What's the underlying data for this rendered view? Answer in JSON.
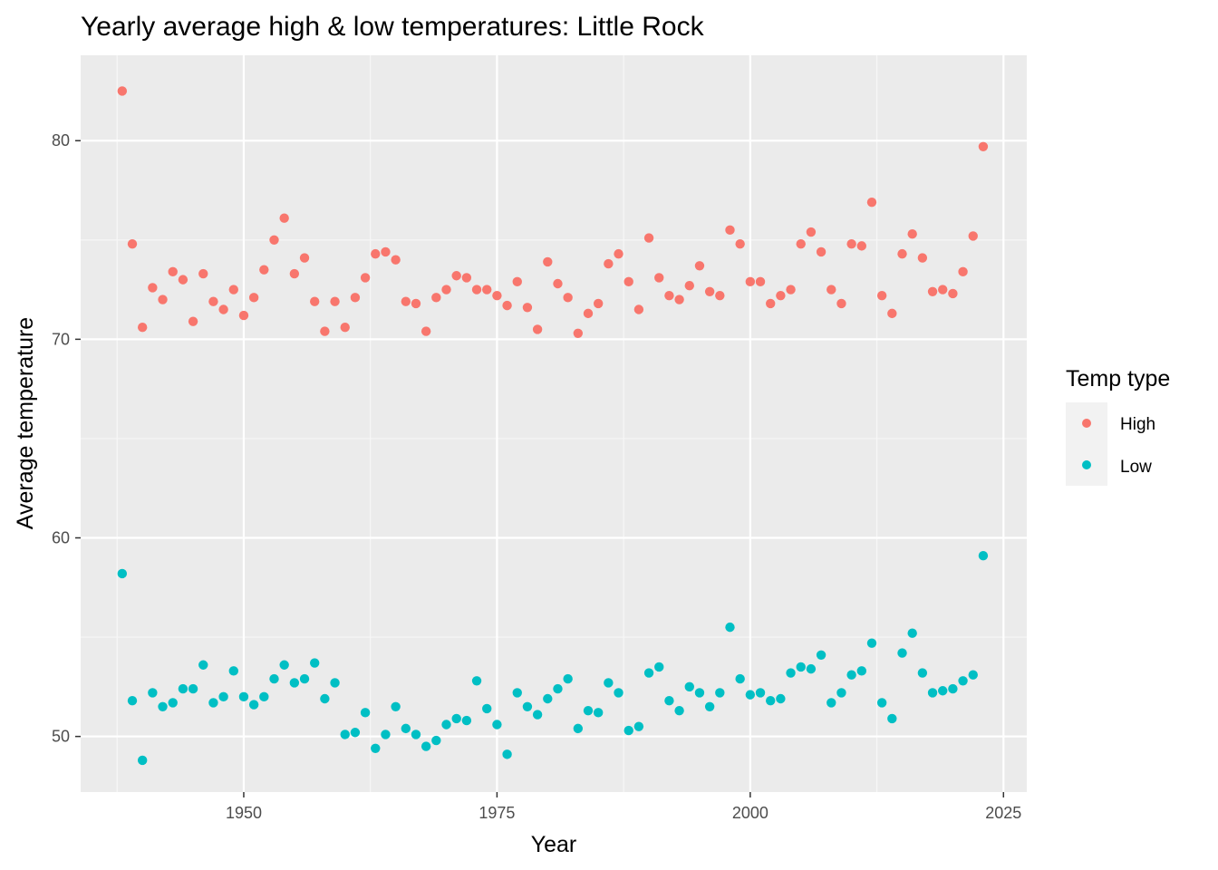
{
  "chart_data": {
    "type": "scatter",
    "title": "Yearly average high & low temperatures: Little Rock",
    "xlabel": "Year",
    "ylabel": "Average temperature",
    "xlim": [
      1933.9,
      2027.3
    ],
    "ylim": [
      47.2,
      84.3
    ],
    "x_ticks": [
      1950,
      1975,
      2000,
      2025
    ],
    "y_ticks": [
      50,
      60,
      70,
      80
    ],
    "grid": true,
    "legend": {
      "title": "Temp type",
      "position": "right"
    },
    "series": [
      {
        "name": "High",
        "color": "#F8766D",
        "x": [
          1938,
          1939,
          1940,
          1941,
          1942,
          1943,
          1944,
          1945,
          1946,
          1947,
          1948,
          1949,
          1950,
          1951,
          1952,
          1953,
          1954,
          1955,
          1956,
          1957,
          1958,
          1959,
          1960,
          1961,
          1962,
          1963,
          1964,
          1965,
          1966,
          1967,
          1968,
          1969,
          1970,
          1971,
          1972,
          1973,
          1974,
          1975,
          1976,
          1977,
          1978,
          1979,
          1980,
          1981,
          1982,
          1983,
          1984,
          1985,
          1986,
          1987,
          1988,
          1989,
          1990,
          1991,
          1992,
          1993,
          1994,
          1995,
          1996,
          1997,
          1998,
          1999,
          2000,
          2001,
          2002,
          2003,
          2004,
          2005,
          2006,
          2007,
          2008,
          2009,
          2010,
          2011,
          2012,
          2013,
          2014,
          2015,
          2016,
          2017,
          2018,
          2019,
          2020,
          2021,
          2022,
          2023
        ],
        "y": [
          82.5,
          74.8,
          70.6,
          72.6,
          72.0,
          73.4,
          73.0,
          70.9,
          73.3,
          71.9,
          71.5,
          72.5,
          71.2,
          72.1,
          73.5,
          75.0,
          76.1,
          73.3,
          74.1,
          71.9,
          70.4,
          71.9,
          70.6,
          72.1,
          73.1,
          74.3,
          74.4,
          74.0,
          71.9,
          71.8,
          70.4,
          72.1,
          72.5,
          73.2,
          73.1,
          72.5,
          72.5,
          72.2,
          71.7,
          72.9,
          71.6,
          70.5,
          73.9,
          72.8,
          72.1,
          70.3,
          71.3,
          71.8,
          73.8,
          74.3,
          72.9,
          71.5,
          75.1,
          73.1,
          72.2,
          72.0,
          72.7,
          73.7,
          72.4,
          72.2,
          75.5,
          74.8,
          72.9,
          72.9,
          71.8,
          72.2,
          72.5,
          74.8,
          75.4,
          74.4,
          72.5,
          71.8,
          74.8,
          74.7,
          76.9,
          72.2,
          71.3,
          74.3,
          75.3,
          74.1,
          72.4,
          72.5,
          72.3,
          73.4,
          75.2,
          79.7
        ]
      },
      {
        "name": "Low",
        "color": "#00BFC4",
        "x": [
          1938,
          1939,
          1940,
          1941,
          1942,
          1943,
          1944,
          1945,
          1946,
          1947,
          1948,
          1949,
          1950,
          1951,
          1952,
          1953,
          1954,
          1955,
          1956,
          1957,
          1958,
          1959,
          1960,
          1961,
          1962,
          1963,
          1964,
          1965,
          1966,
          1967,
          1968,
          1969,
          1970,
          1971,
          1972,
          1973,
          1974,
          1975,
          1976,
          1977,
          1978,
          1979,
          1980,
          1981,
          1982,
          1983,
          1984,
          1985,
          1986,
          1987,
          1988,
          1989,
          1990,
          1991,
          1992,
          1993,
          1994,
          1995,
          1996,
          1997,
          1998,
          1999,
          2000,
          2001,
          2002,
          2003,
          2004,
          2005,
          2006,
          2007,
          2008,
          2009,
          2010,
          2011,
          2012,
          2013,
          2014,
          2015,
          2016,
          2017,
          2018,
          2019,
          2020,
          2021,
          2022,
          2023
        ],
        "y": [
          58.2,
          51.8,
          48.8,
          52.2,
          51.5,
          51.7,
          52.4,
          52.4,
          53.6,
          51.7,
          52.0,
          53.3,
          52.0,
          51.6,
          52.0,
          52.9,
          53.6,
          52.7,
          52.9,
          53.7,
          51.9,
          52.7,
          50.1,
          50.2,
          51.2,
          49.4,
          50.1,
          51.5,
          50.4,
          50.1,
          49.5,
          49.8,
          50.6,
          50.9,
          50.8,
          52.8,
          51.4,
          50.6,
          49.1,
          52.2,
          51.5,
          51.1,
          51.9,
          52.4,
          52.9,
          50.4,
          51.3,
          51.2,
          52.7,
          52.2,
          50.3,
          50.5,
          53.2,
          53.5,
          51.8,
          51.3,
          52.5,
          52.2,
          51.5,
          52.2,
          55.5,
          52.9,
          52.1,
          52.2,
          51.8,
          51.9,
          53.2,
          53.5,
          53.4,
          54.1,
          51.7,
          52.2,
          53.1,
          53.3,
          54.7,
          51.7,
          50.9,
          54.2,
          55.2,
          53.2,
          52.2,
          52.3,
          52.4,
          52.8,
          53.1,
          59.1
        ]
      }
    ]
  }
}
